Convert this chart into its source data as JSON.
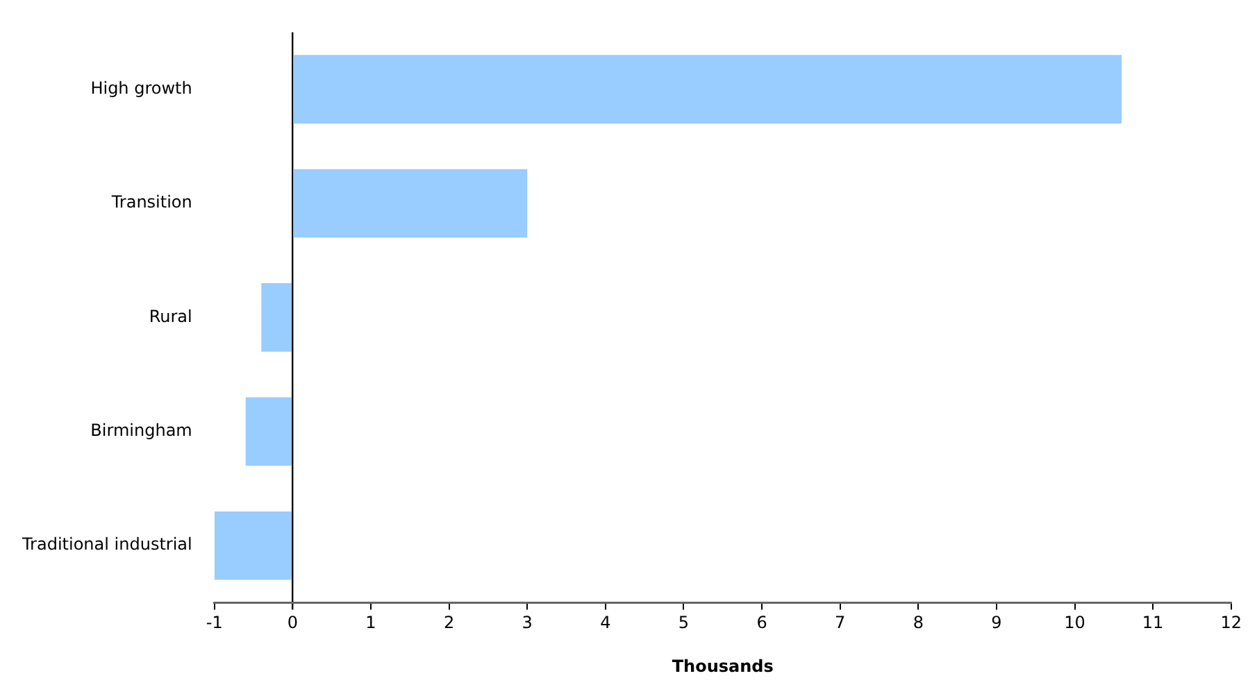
{
  "chart_data": {
    "type": "bar",
    "orientation": "horizontal",
    "xlabel": "Thousands",
    "categories": [
      "High growth",
      "Transition",
      "Rural",
      "Birmingham",
      "Traditional industrial"
    ],
    "values": [
      10.6,
      3.0,
      -0.4,
      -0.6,
      -1.0
    ],
    "color": "#99ccff",
    "xlim": [
      -1,
      12
    ],
    "xticks": [
      -1,
      0,
      1,
      2,
      3,
      4,
      5,
      6,
      7,
      8,
      9,
      10,
      11,
      12
    ],
    "legend": false
  }
}
